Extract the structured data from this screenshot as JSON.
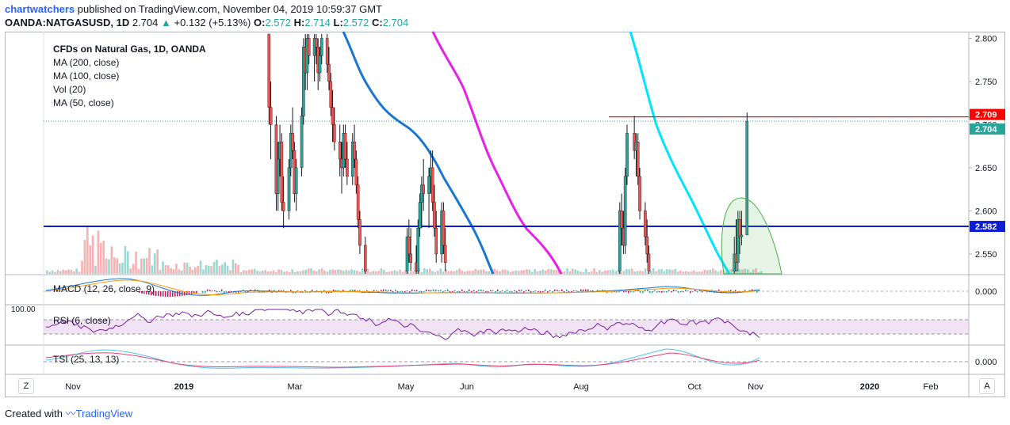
{
  "header": {
    "author": "chartwatchers",
    "published": "published on TradingView.com, November 04, 2019 10:59:37 GMT",
    "symbol": "OANDA:NATGASUSD, 1D",
    "last": "2.704",
    "change": "+0.132 (+5.13%)",
    "o_label": "O:",
    "o": "2.572",
    "h_label": "H:",
    "h": "2.714",
    "l_label": "L:",
    "l": "2.572",
    "c_label": "C:",
    "c": "2.704"
  },
  "legend": {
    "title": "CFDs on Natural Gas, 1D, OANDA",
    "items": [
      "MA (200, close)",
      "MA (100, close)",
      "Vol (20)",
      "MA (50, close)"
    ]
  },
  "indicators": {
    "macd": "MACD (12, 26, close, 9)",
    "rsi": "RSI (6, close)",
    "rsi_top": "100.00",
    "tsi": "TSI (25, 13, 13)"
  },
  "footer": {
    "created": "Created with",
    "brand": "TradingView"
  },
  "buttons": {
    "left": "Z",
    "right": "A"
  },
  "colors": {
    "up": "#26a69a",
    "down": "#ef5350",
    "ma200": "#1976d2",
    "ma100": "#e91ee9",
    "ma50": "#00e5ff",
    "support": "#0d1cd6",
    "resistance": "#c62828",
    "ellipse": "#4caf50"
  },
  "chart_data": {
    "type": "candlestick",
    "symbol": "OANDA:NATGASUSD",
    "interval": "1D",
    "price_axis": {
      "ylim": [
        2.527,
        2.805
      ],
      "ticks": [
        "2.800",
        "2.750",
        "2.700",
        "2.650",
        "2.600",
        "2.550"
      ],
      "markers": [
        {
          "label": "2.709",
          "value": 2.709,
          "color": "#ff0000"
        },
        {
          "label": "2.704",
          "value": 2.704,
          "color": "#26a69a"
        },
        {
          "label": "2.582",
          "value": 2.582,
          "color": "#0d1cd6"
        }
      ]
    },
    "time_axis": {
      "labels": [
        "Nov",
        "2019",
        "Mar",
        "May",
        "Jun",
        "Aug",
        "Oct",
        "Nov",
        "2020",
        "Feb"
      ]
    },
    "horizontal_lines": [
      {
        "name": "support",
        "value": 2.582
      },
      {
        "name": "resistance",
        "value": 2.709
      },
      {
        "name": "last",
        "value": 2.704
      }
    ],
    "ohlc_last": {
      "open": 2.572,
      "high": 2.714,
      "low": 2.572,
      "close": 2.704
    },
    "candles": [
      {
        "t": "2019-02-14",
        "o": 2.81,
        "h": 2.81,
        "l": 2.7,
        "c": 2.72
      },
      {
        "t": "2019-02-15",
        "o": 2.72,
        "h": 2.75,
        "l": 2.66,
        "c": 2.7
      },
      {
        "t": "2019-02-18",
        "o": 2.7,
        "h": 2.71,
        "l": 2.6,
        "c": 2.62
      },
      {
        "t": "2019-02-19",
        "o": 2.62,
        "h": 2.68,
        "l": 2.6,
        "c": 2.66
      },
      {
        "t": "2019-02-20",
        "o": 2.66,
        "h": 2.7,
        "l": 2.64,
        "c": 2.68
      },
      {
        "t": "2019-02-21",
        "o": 2.68,
        "h": 2.69,
        "l": 2.6,
        "c": 2.61
      },
      {
        "t": "2019-02-22",
        "o": 2.61,
        "h": 2.64,
        "l": 2.58,
        "c": 2.6
      },
      {
        "t": "2019-02-25",
        "o": 2.6,
        "h": 2.66,
        "l": 2.59,
        "c": 2.65
      },
      {
        "t": "2019-02-26",
        "o": 2.65,
        "h": 2.7,
        "l": 2.64,
        "c": 2.69
      },
      {
        "t": "2019-02-27",
        "o": 2.69,
        "h": 2.72,
        "l": 2.66,
        "c": 2.67
      },
      {
        "t": "2019-02-28",
        "o": 2.67,
        "h": 2.68,
        "l": 2.61,
        "c": 2.62
      },
      {
        "t": "2019-03-01",
        "o": 2.62,
        "h": 2.66,
        "l": 2.6,
        "c": 2.65
      },
      {
        "t": "2019-03-04",
        "o": 2.65,
        "h": 2.72,
        "l": 2.64,
        "c": 2.71
      },
      {
        "t": "2019-03-05",
        "o": 2.71,
        "h": 2.8,
        "l": 2.7,
        "c": 2.79
      },
      {
        "t": "2019-03-06",
        "o": 2.79,
        "h": 2.82,
        "l": 2.74,
        "c": 2.76
      },
      {
        "t": "2019-03-07",
        "o": 2.76,
        "h": 2.81,
        "l": 2.74,
        "c": 2.8
      },
      {
        "t": "2019-03-08",
        "o": 2.8,
        "h": 2.82,
        "l": 2.77,
        "c": 2.78
      },
      {
        "t": "2019-03-11",
        "o": 2.78,
        "h": 2.81,
        "l": 2.75,
        "c": 2.8
      },
      {
        "t": "2019-03-12",
        "o": 2.8,
        "h": 2.81,
        "l": 2.77,
        "c": 2.79
      },
      {
        "t": "2019-03-13",
        "o": 2.79,
        "h": 2.8,
        "l": 2.74,
        "c": 2.76
      },
      {
        "t": "2019-03-14",
        "o": 2.76,
        "h": 2.79,
        "l": 2.75,
        "c": 2.78
      },
      {
        "t": "2019-03-15",
        "o": 2.78,
        "h": 2.81,
        "l": 2.77,
        "c": 2.8
      },
      {
        "t": "2019-03-18",
        "o": 2.8,
        "h": 2.81,
        "l": 2.76,
        "c": 2.77
      },
      {
        "t": "2019-03-19",
        "o": 2.77,
        "h": 2.79,
        "l": 2.74,
        "c": 2.75
      },
      {
        "t": "2019-03-20",
        "o": 2.75,
        "h": 2.76,
        "l": 2.71,
        "c": 2.72
      },
      {
        "t": "2019-03-21",
        "o": 2.72,
        "h": 2.74,
        "l": 2.68,
        "c": 2.7
      },
      {
        "t": "2019-03-22",
        "o": 2.7,
        "h": 2.72,
        "l": 2.67,
        "c": 2.68
      },
      {
        "t": "2019-03-25",
        "o": 2.68,
        "h": 2.7,
        "l": 2.64,
        "c": 2.66
      },
      {
        "t": "2019-03-26",
        "o": 2.66,
        "h": 2.68,
        "l": 2.62,
        "c": 2.65
      },
      {
        "t": "2019-03-27",
        "o": 2.65,
        "h": 2.7,
        "l": 2.64,
        "c": 2.69
      },
      {
        "t": "2019-03-28",
        "o": 2.69,
        "h": 2.7,
        "l": 2.65,
        "c": 2.66
      },
      {
        "t": "2019-03-29",
        "o": 2.66,
        "h": 2.68,
        "l": 2.63,
        "c": 2.64
      },
      {
        "t": "2019-04-01",
        "o": 2.64,
        "h": 2.69,
        "l": 2.63,
        "c": 2.68
      },
      {
        "t": "2019-04-02",
        "o": 2.68,
        "h": 2.7,
        "l": 2.65,
        "c": 2.66
      },
      {
        "t": "2019-04-03",
        "o": 2.66,
        "h": 2.67,
        "l": 2.62,
        "c": 2.63
      },
      {
        "t": "2019-04-04",
        "o": 2.63,
        "h": 2.64,
        "l": 2.58,
        "c": 2.59
      },
      {
        "t": "2019-04-05",
        "o": 2.59,
        "h": 2.6,
        "l": 2.55,
        "c": 2.56
      },
      {
        "t": "2019-04-08",
        "o": 2.56,
        "h": 2.57,
        "l": 2.52,
        "c": 2.53
      },
      {
        "t": "2019-05-01",
        "o": 2.53,
        "h": 2.58,
        "l": 2.52,
        "c": 2.57
      },
      {
        "t": "2019-05-02",
        "o": 2.57,
        "h": 2.59,
        "l": 2.54,
        "c": 2.55
      },
      {
        "t": "2019-05-03",
        "o": 2.55,
        "h": 2.58,
        "l": 2.53,
        "c": 2.54
      },
      {
        "t": "2019-05-06",
        "o": 2.54,
        "h": 2.56,
        "l": 2.52,
        "c": 2.53
      },
      {
        "t": "2019-05-07",
        "o": 2.53,
        "h": 2.59,
        "l": 2.52,
        "c": 2.58
      },
      {
        "t": "2019-05-08",
        "o": 2.58,
        "h": 2.62,
        "l": 2.57,
        "c": 2.61
      },
      {
        "t": "2019-05-09",
        "o": 2.61,
        "h": 2.64,
        "l": 2.58,
        "c": 2.63
      },
      {
        "t": "2019-05-10",
        "o": 2.63,
        "h": 2.66,
        "l": 2.6,
        "c": 2.62
      },
      {
        "t": "2019-05-13",
        "o": 2.62,
        "h": 2.65,
        "l": 2.58,
        "c": 2.64
      },
      {
        "t": "2019-05-14",
        "o": 2.64,
        "h": 2.67,
        "l": 2.62,
        "c": 2.65
      },
      {
        "t": "2019-05-15",
        "o": 2.65,
        "h": 2.67,
        "l": 2.6,
        "c": 2.61
      },
      {
        "t": "2019-05-16",
        "o": 2.61,
        "h": 2.63,
        "l": 2.57,
        "c": 2.58
      },
      {
        "t": "2019-05-17",
        "o": 2.58,
        "h": 2.6,
        "l": 2.54,
        "c": 2.55
      },
      {
        "t": "2019-05-20",
        "o": 2.55,
        "h": 2.61,
        "l": 2.54,
        "c": 2.6
      },
      {
        "t": "2019-05-21",
        "o": 2.6,
        "h": 2.61,
        "l": 2.55,
        "c": 2.56
      },
      {
        "t": "2019-05-22",
        "o": 2.56,
        "h": 2.58,
        "l": 2.53,
        "c": 2.54
      },
      {
        "t": "2019-08-26",
        "o": 2.53,
        "h": 2.61,
        "l": 2.52,
        "c": 2.6
      },
      {
        "t": "2019-08-27",
        "o": 2.6,
        "h": 2.62,
        "l": 2.56,
        "c": 2.58
      },
      {
        "t": "2019-08-28",
        "o": 2.58,
        "h": 2.6,
        "l": 2.55,
        "c": 2.56
      },
      {
        "t": "2019-08-29",
        "o": 2.56,
        "h": 2.65,
        "l": 2.55,
        "c": 2.64
      },
      {
        "t": "2019-08-30",
        "o": 2.64,
        "h": 2.7,
        "l": 2.63,
        "c": 2.69
      },
      {
        "t": "2019-09-03",
        "o": 2.69,
        "h": 2.71,
        "l": 2.66,
        "c": 2.67
      },
      {
        "t": "2019-09-04",
        "o": 2.67,
        "h": 2.69,
        "l": 2.64,
        "c": 2.68
      },
      {
        "t": "2019-09-05",
        "o": 2.68,
        "h": 2.69,
        "l": 2.63,
        "c": 2.64
      },
      {
        "t": "2019-09-06",
        "o": 2.64,
        "h": 2.65,
        "l": 2.59,
        "c": 2.6
      },
      {
        "t": "2019-09-09",
        "o": 2.6,
        "h": 2.61,
        "l": 2.56,
        "c": 2.57
      },
      {
        "t": "2019-09-10",
        "o": 2.57,
        "h": 2.59,
        "l": 2.54,
        "c": 2.55
      },
      {
        "t": "2019-09-11",
        "o": 2.55,
        "h": 2.56,
        "l": 2.52,
        "c": 2.53
      },
      {
        "t": "2019-10-28",
        "o": 2.53,
        "h": 2.57,
        "l": 2.52,
        "c": 2.55
      },
      {
        "t": "2019-10-29",
        "o": 2.55,
        "h": 2.59,
        "l": 2.53,
        "c": 2.54
      },
      {
        "t": "2019-10-30",
        "o": 2.54,
        "h": 2.6,
        "l": 2.53,
        "c": 2.59
      },
      {
        "t": "2019-10-31",
        "o": 2.59,
        "h": 2.6,
        "l": 2.55,
        "c": 2.57
      },
      {
        "t": "2019-11-01",
        "o": 2.57,
        "h": 2.6,
        "l": 2.56,
        "c": 2.572
      },
      {
        "t": "2019-11-04",
        "o": 2.572,
        "h": 2.714,
        "l": 2.572,
        "c": 2.704
      }
    ]
  }
}
